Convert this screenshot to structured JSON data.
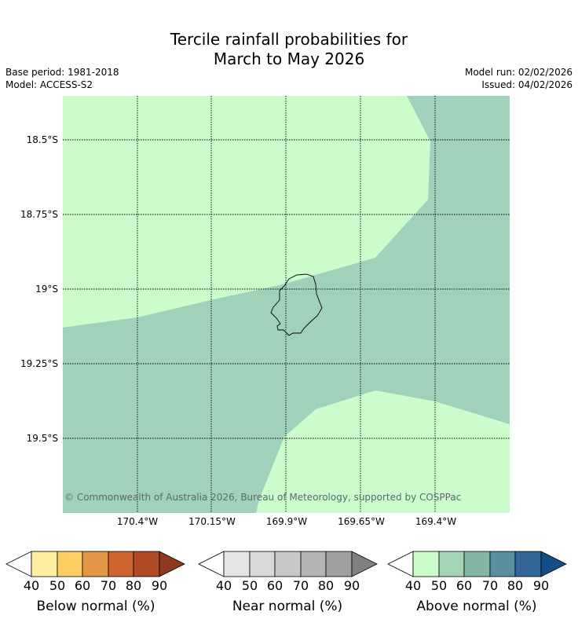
{
  "title": {
    "line1": "Tercile rainfall probabilities for",
    "line2": "March to May 2026"
  },
  "info": {
    "base_period": "Base period: 1981-2018",
    "model": "Model: ACCESS-S2",
    "model_run": "Model run: 02/02/2026",
    "issued": "Issued: 04/02/2026"
  },
  "map": {
    "lat_labels": [
      "18.5°S",
      "18.75°S",
      "19°S",
      "19.25°S",
      "19.5°S"
    ],
    "lon_labels": [
      "170.4°W",
      "170.15°W",
      "169.9°W",
      "169.65°W",
      "169.4°W"
    ],
    "copyright": "© Commonwealth of Australia 2026, Bureau of Meteorology, supported by COSPPac",
    "fill_colors": {
      "above_40_50": "#ccfccc",
      "above_50_60": "#9fd1bb",
      "coastline": "#000000"
    }
  },
  "legend": {
    "ticks": [
      "40",
      "50",
      "60",
      "70",
      "80",
      "90"
    ],
    "below": {
      "title": "Below normal (%)",
      "colors": [
        "#ffffff",
        "#ffeda0",
        "#fece65",
        "#e39747",
        "#d0622e",
        "#b14b27",
        "#8e3a22"
      ]
    },
    "near": {
      "title": "Near normal (%)",
      "colors": [
        "#ffffff",
        "#e5e5e5",
        "#d9d9d9",
        "#c8c8c8",
        "#b4b4b4",
        "#a0a0a0",
        "#808080"
      ]
    },
    "above": {
      "title": "Above normal (%)",
      "colors": [
        "#ffffff",
        "#ccfccc",
        "#a4d6b6",
        "#84b6a6",
        "#5990a0",
        "#336699",
        "#124e87"
      ]
    }
  }
}
